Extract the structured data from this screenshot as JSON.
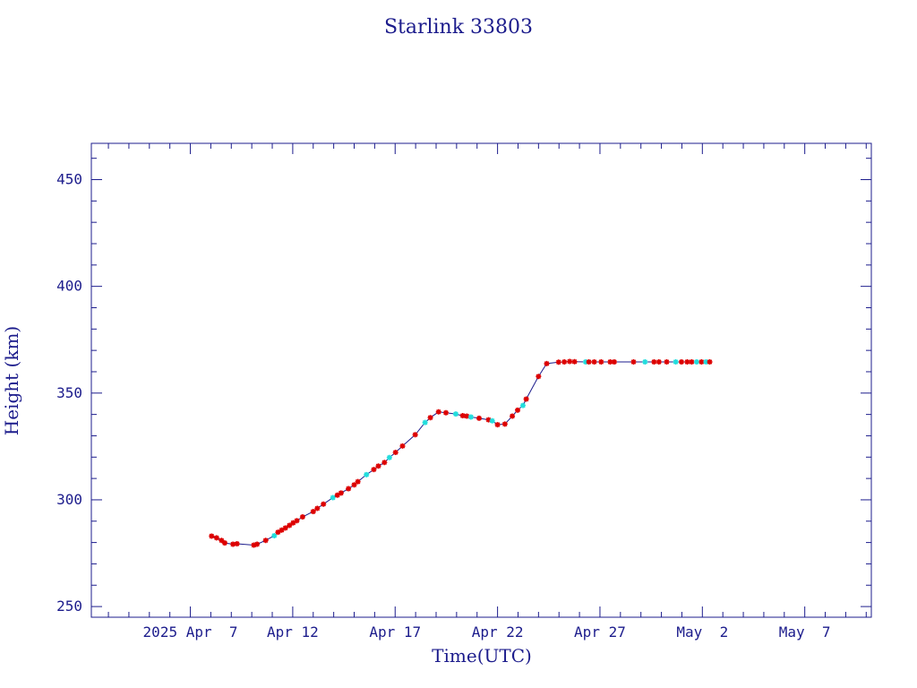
{
  "chart_data": {
    "type": "line",
    "title": "Starlink 33803",
    "xlabel": "Time(UTC)",
    "ylabel": "Height (km)",
    "x_unit": "date (UTC, 2025)",
    "xlim": [
      "2025-04-02T04:00",
      "2025-05-10T06:00"
    ],
    "ylim": [
      245,
      467
    ],
    "x_ticks": [
      {
        "x": "2025-04-07",
        "label": "2025 Apr  7"
      },
      {
        "x": "2025-04-12",
        "label": "Apr 12"
      },
      {
        "x": "2025-04-17",
        "label": "Apr 17"
      },
      {
        "x": "2025-04-22",
        "label": "Apr 22"
      },
      {
        "x": "2025-04-27",
        "label": "Apr 27"
      },
      {
        "x": "2025-05-02",
        "label": "May  2"
      },
      {
        "x": "2025-05-07",
        "label": "May  7"
      }
    ],
    "y_ticks": [
      250,
      300,
      350,
      400,
      450
    ],
    "grid": false,
    "legend": "none",
    "colors": {
      "axis": "#1c1c8c",
      "line": "#1c1c8c",
      "marker_primary": "#dd0000",
      "marker_secondary": "#22dddd"
    },
    "series": [
      {
        "marker": "star",
        "points": [
          {
            "x": "2025-04-08T00:55",
            "y": 283.0,
            "m": "r"
          },
          {
            "x": "2025-04-08T06:43",
            "y": 282.2,
            "m": "r"
          },
          {
            "x": "2025-04-08T12:31",
            "y": 281.0,
            "m": "r"
          },
          {
            "x": "2025-04-08T16:19",
            "y": 279.8,
            "m": "r"
          },
          {
            "x": "2025-04-09T01:55",
            "y": 279.2,
            "m": "r"
          },
          {
            "x": "2025-04-09T06:43",
            "y": 279.4,
            "m": "r"
          },
          {
            "x": "2025-04-10T02:24",
            "y": 278.8,
            "m": "r"
          },
          {
            "x": "2025-04-10T06:14",
            "y": 279.2,
            "m": "r"
          },
          {
            "x": "2025-04-10T16:19",
            "y": 281.0,
            "m": "r"
          },
          {
            "x": "2025-04-11T02:24",
            "y": 283.2,
            "m": "c"
          },
          {
            "x": "2025-04-11T06:43",
            "y": 284.8,
            "m": "r"
          },
          {
            "x": "2025-04-11T11:02",
            "y": 285.8,
            "m": "r"
          },
          {
            "x": "2025-04-11T15:22",
            "y": 286.8,
            "m": "r"
          },
          {
            "x": "2025-04-11T20:10",
            "y": 288.0,
            "m": "r"
          },
          {
            "x": "2025-04-12T00:29",
            "y": 289.2,
            "m": "r"
          },
          {
            "x": "2025-04-12T04:48",
            "y": 290.2,
            "m": "r"
          },
          {
            "x": "2025-04-12T11:31",
            "y": 292.0,
            "m": "r"
          },
          {
            "x": "2025-04-13T00:00",
            "y": 294.5,
            "m": "r"
          },
          {
            "x": "2025-04-13T04:48",
            "y": 296.0,
            "m": "r"
          },
          {
            "x": "2025-04-13T12:00",
            "y": 298.0,
            "m": "r"
          },
          {
            "x": "2025-04-13T23:02",
            "y": 301.0,
            "m": "c"
          },
          {
            "x": "2025-04-14T04:19",
            "y": 302.2,
            "m": "r"
          },
          {
            "x": "2025-04-14T08:38",
            "y": 303.2,
            "m": "r"
          },
          {
            "x": "2025-04-14T17:17",
            "y": 305.2,
            "m": "r"
          },
          {
            "x": "2025-04-15T00:00",
            "y": 307.0,
            "m": "r"
          },
          {
            "x": "2025-04-15T04:19",
            "y": 308.5,
            "m": "r"
          },
          {
            "x": "2025-04-15T14:24",
            "y": 311.8,
            "m": "c"
          },
          {
            "x": "2025-04-15T23:02",
            "y": 314.2,
            "m": "r"
          },
          {
            "x": "2025-04-16T04:19",
            "y": 315.8,
            "m": "r"
          },
          {
            "x": "2025-04-16T11:31",
            "y": 317.5,
            "m": "r"
          },
          {
            "x": "2025-04-16T17:17",
            "y": 319.8,
            "m": "c"
          },
          {
            "x": "2025-04-17T00:29",
            "y": 322.2,
            "m": "r"
          },
          {
            "x": "2025-04-17T08:38",
            "y": 325.2,
            "m": "r"
          },
          {
            "x": "2025-04-17T23:31",
            "y": 330.5,
            "m": "r"
          },
          {
            "x": "2025-04-18T11:02",
            "y": 336.2,
            "m": "c"
          },
          {
            "x": "2025-04-18T17:17",
            "y": 338.5,
            "m": "r"
          },
          {
            "x": "2025-04-19T02:52",
            "y": 341.2,
            "m": "r"
          },
          {
            "x": "2025-04-19T11:31",
            "y": 340.8,
            "m": "r"
          },
          {
            "x": "2025-04-19T23:02",
            "y": 340.2,
            "m": "c"
          },
          {
            "x": "2025-04-20T07:12",
            "y": 339.4,
            "m": "r"
          },
          {
            "x": "2025-04-20T12:00",
            "y": 339.2,
            "m": "r"
          },
          {
            "x": "2025-04-20T16:48",
            "y": 338.8,
            "m": "c"
          },
          {
            "x": "2025-04-21T02:24",
            "y": 338.2,
            "m": "r"
          },
          {
            "x": "2025-04-21T13:26",
            "y": 337.5,
            "m": "r"
          },
          {
            "x": "2025-04-21T17:46",
            "y": 337.0,
            "m": "c"
          },
          {
            "x": "2025-04-22T00:00",
            "y": 335.2,
            "m": "r"
          },
          {
            "x": "2025-04-22T08:38",
            "y": 335.5,
            "m": "r"
          },
          {
            "x": "2025-04-22T17:17",
            "y": 339.2,
            "m": "r"
          },
          {
            "x": "2025-04-22T23:31",
            "y": 342.0,
            "m": "r"
          },
          {
            "x": "2025-04-23T05:46",
            "y": 344.2,
            "m": "c"
          },
          {
            "x": "2025-04-23T09:36",
            "y": 347.2,
            "m": "r"
          },
          {
            "x": "2025-04-24T00:00",
            "y": 357.8,
            "m": "r"
          },
          {
            "x": "2025-04-24T09:36",
            "y": 363.8,
            "m": "r"
          },
          {
            "x": "2025-04-24T23:31",
            "y": 364.5,
            "m": "r"
          },
          {
            "x": "2025-04-25T06:14",
            "y": 364.6,
            "m": "r"
          },
          {
            "x": "2025-04-25T12:31",
            "y": 364.8,
            "m": "r"
          },
          {
            "x": "2025-04-25T18:14",
            "y": 364.7,
            "m": "r"
          },
          {
            "x": "2025-04-26T07:12",
            "y": 364.6,
            "m": "c"
          },
          {
            "x": "2025-04-26T11:02",
            "y": 364.6,
            "m": "r"
          },
          {
            "x": "2025-04-26T17:17",
            "y": 364.6,
            "m": "r"
          },
          {
            "x": "2025-04-27T01:26",
            "y": 364.6,
            "m": "r"
          },
          {
            "x": "2025-04-27T12:00",
            "y": 364.6,
            "m": "r"
          },
          {
            "x": "2025-04-27T16:48",
            "y": 364.6,
            "m": "r"
          },
          {
            "x": "2025-04-28T15:22",
            "y": 364.6,
            "m": "r"
          },
          {
            "x": "2025-04-29T04:48",
            "y": 364.6,
            "m": "c"
          },
          {
            "x": "2025-04-29T15:22",
            "y": 364.6,
            "m": "r"
          },
          {
            "x": "2025-04-29T21:07",
            "y": 364.6,
            "m": "r"
          },
          {
            "x": "2025-04-30T06:14",
            "y": 364.6,
            "m": "r"
          },
          {
            "x": "2025-04-30T16:48",
            "y": 364.6,
            "m": "c"
          },
          {
            "x": "2025-04-30T23:31",
            "y": 364.6,
            "m": "r"
          },
          {
            "x": "2025-05-01T06:14",
            "y": 364.6,
            "m": "r"
          },
          {
            "x": "2025-05-01T11:31",
            "y": 364.6,
            "m": "r"
          },
          {
            "x": "2025-05-01T17:17",
            "y": 364.6,
            "m": "c"
          },
          {
            "x": "2025-05-01T23:02",
            "y": 364.6,
            "m": "r"
          },
          {
            "x": "2025-05-02T04:19",
            "y": 364.6,
            "m": "c"
          },
          {
            "x": "2025-05-02T08:38",
            "y": 364.6,
            "m": "r"
          }
        ]
      }
    ]
  }
}
